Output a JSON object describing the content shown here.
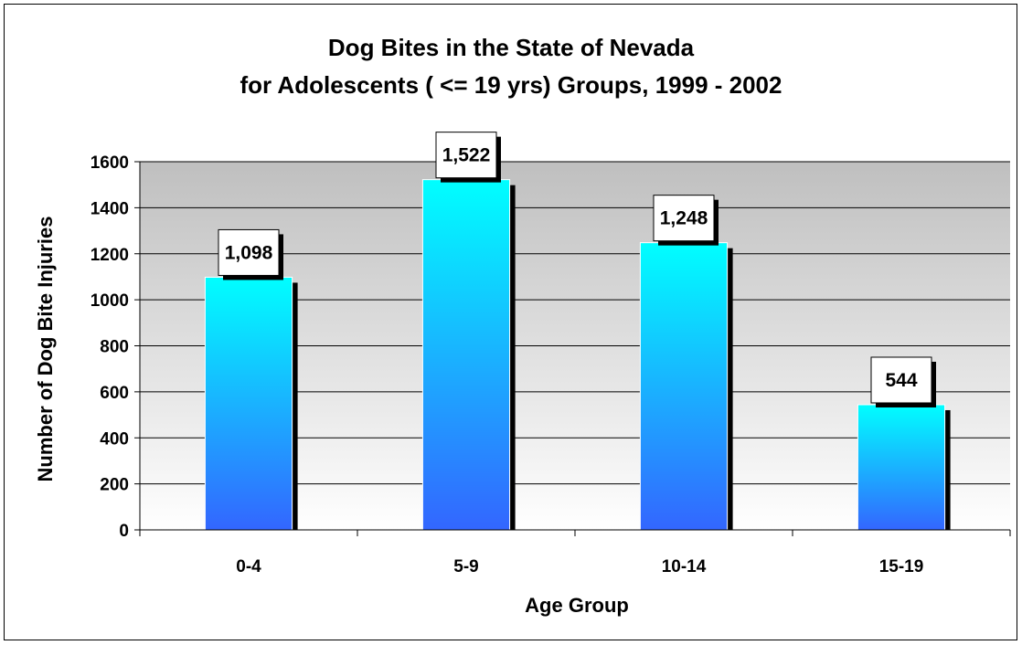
{
  "chart_data": {
    "type": "bar",
    "title": [
      "Dog Bites in the State of Nevada",
      "for Adolescents ( <= 19 yrs) Groups, 1999 - 2002"
    ],
    "xlabel": "Age Group",
    "ylabel": "Number of Dog Bite Injuries",
    "categories": [
      "0-4",
      "5-9",
      "10-14",
      "15-19"
    ],
    "values": [
      1098,
      1522,
      1248,
      544
    ],
    "data_labels": [
      "1,098",
      "1,522",
      "1,248",
      "544"
    ],
    "ylim": [
      0,
      1600
    ],
    "yticks": [
      0,
      200,
      400,
      600,
      800,
      1000,
      1200,
      1400,
      1600
    ],
    "grid": true,
    "legend": "none",
    "colors": {
      "bar_top": "#00ffff",
      "bar_bottom": "#3366ff",
      "bar_shadow": "#000000",
      "plot_bg_top": "#bfbfbf",
      "plot_bg_bottom": "#ffffff",
      "gridline": "#000000"
    }
  }
}
